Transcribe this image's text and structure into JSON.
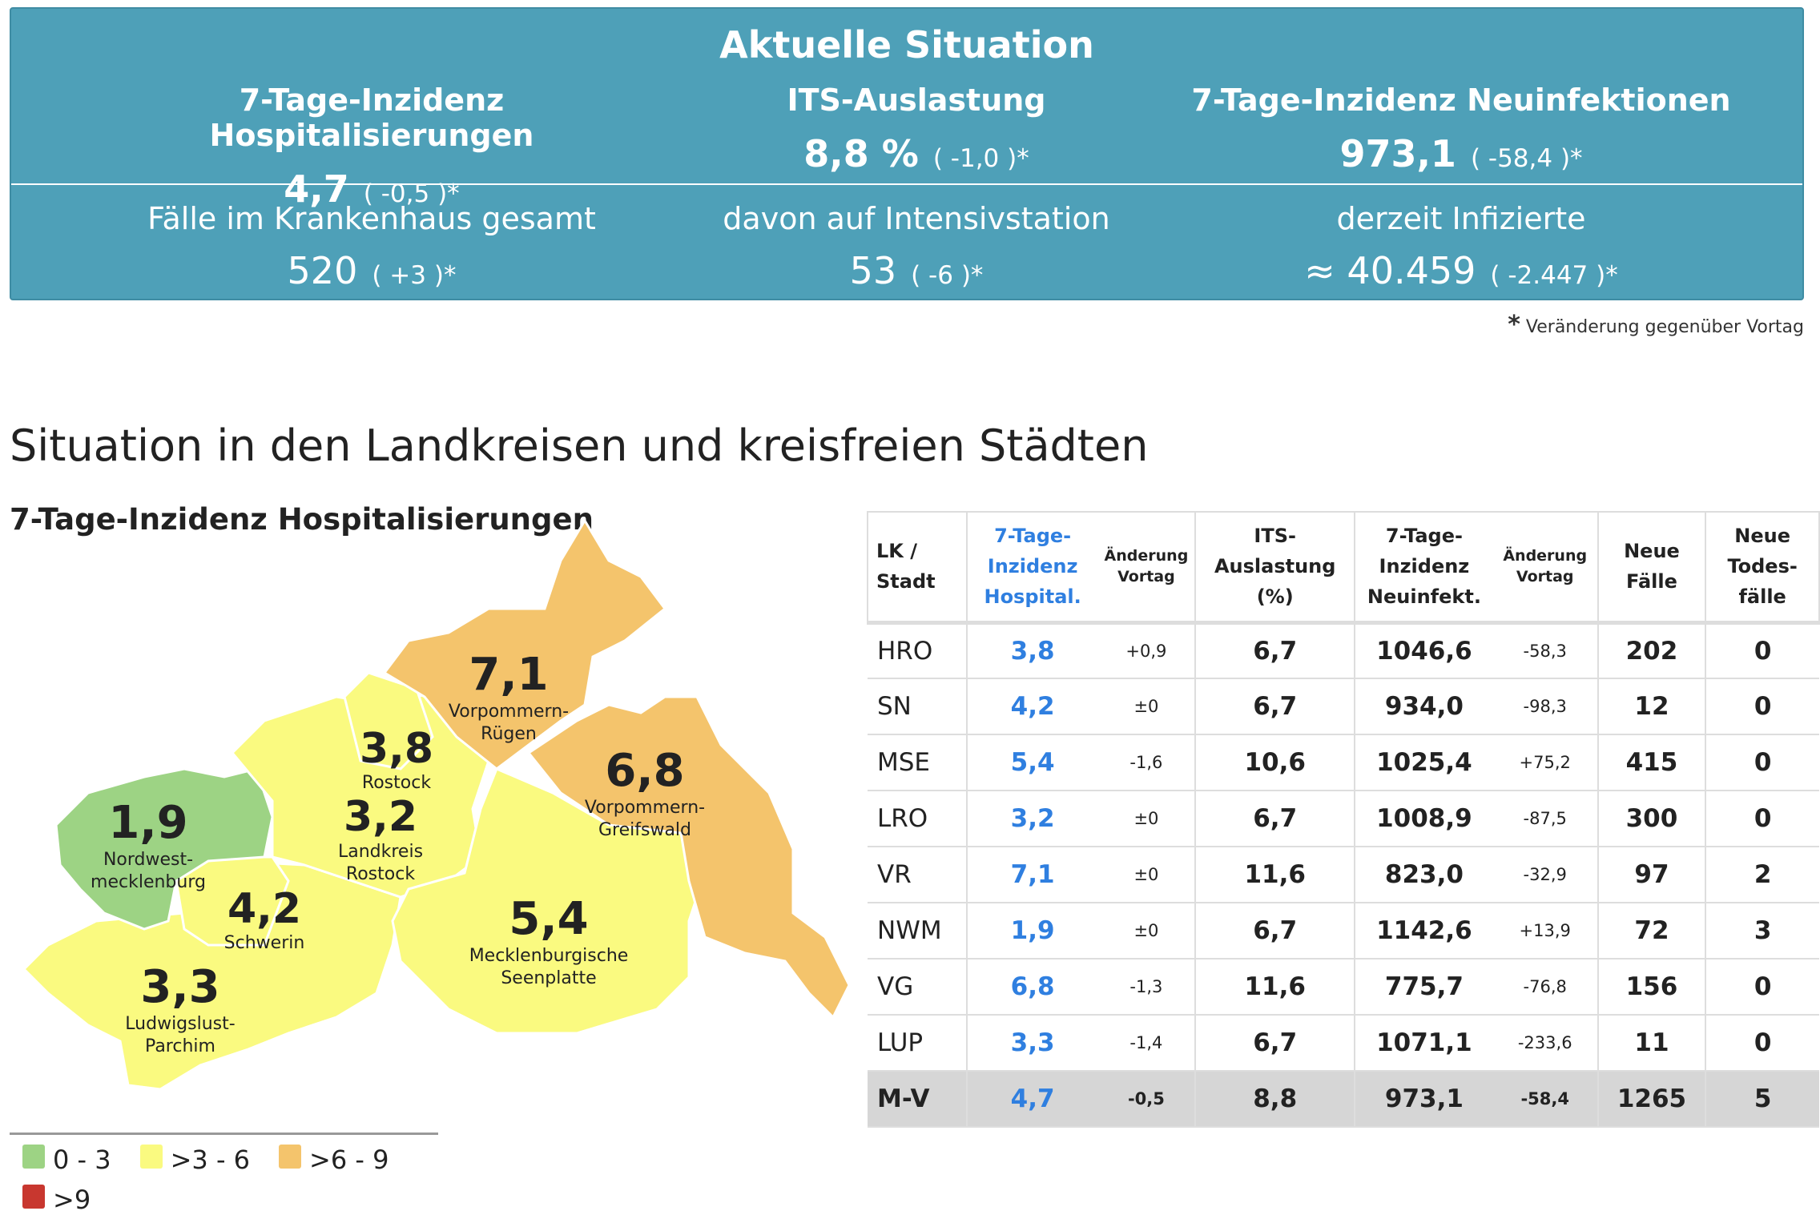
{
  "summary": {
    "title": "Aktuelle Situation",
    "items": [
      {
        "label": "7-Tage-Inzidenz Hospitalisierungen",
        "value": "4,7",
        "change": "( -0,5 )*"
      },
      {
        "label": "ITS-Auslastung",
        "value": "8,8 %",
        "change": "( -1,0 )*"
      },
      {
        "label": "7-Tage-Inzidenz Neuinfektionen",
        "value": "973,1",
        "change": "( -58,4 )*"
      },
      {
        "label": "Fälle im Krankenhaus gesamt",
        "value": "520",
        "change": "( +3 )*"
      },
      {
        "label": "davon auf Intensivstation",
        "value": "53",
        "change": "( -6 )*"
      },
      {
        "label": "derzeit Infizierte",
        "value": "≈ 40.459",
        "change": "( -2.447 )*"
      }
    ],
    "note_star": "*",
    "note": "Veränderung gegenüber Vortag"
  },
  "section_title": "Situation in den Landkreisen und kreisfreien Städten",
  "map": {
    "title": "7-Tage-Inzidenz Hospitalisierungen",
    "regions": [
      {
        "name": "Vorpommern-Rügen",
        "value": "7,1",
        "l1": "Vorpommern-",
        "l2": "Rügen"
      },
      {
        "name": "Rostock",
        "value": "3,8",
        "l1": "Rostock",
        "l2": ""
      },
      {
        "name": "Vorpommern-Greifswald",
        "value": "6,8",
        "l1": "Vorpommern-",
        "l2": "Greifswald"
      },
      {
        "name": "Nordwestmecklenburg",
        "value": "1,9",
        "l1": "Nordwest-",
        "l2": "mecklenburg"
      },
      {
        "name": "Landkreis Rostock",
        "value": "3,2",
        "l1": "Landkreis",
        "l2": "Rostock"
      },
      {
        "name": "Schwerin",
        "value": "4,2",
        "l1": "Schwerin",
        "l2": ""
      },
      {
        "name": "Mecklenburgische Seenplatte",
        "value": "5,4",
        "l1": "Mecklenburgische",
        "l2": "Seenplatte"
      },
      {
        "name": "Ludwigslust-Parchim",
        "value": "3,3",
        "l1": "Ludwigslust-",
        "l2": "Parchim"
      }
    ],
    "legend": [
      {
        "label": "0 - 3",
        "color": "#9dd384"
      },
      {
        "label": ">3 - 6",
        "color": "#fafa80"
      },
      {
        "label": ">6 - 9",
        "color": "#f4c46c"
      },
      {
        "label": ">9",
        "color": "#c8372f"
      }
    ]
  },
  "table": {
    "headers": {
      "lk": "LK / Stadt",
      "hosp": "7-Tage- Inzidenz Hospital.",
      "chg": "Änderung Vortag",
      "its": "ITS- Auslastung (%)",
      "inf": "7-Tage- Inzidenz Neuinfekt.",
      "chg2": "Änderung Vortag",
      "neu": "Neue Fälle",
      "tod": "Neue Todes- fälle"
    },
    "rows": [
      [
        "HRO",
        "3,8",
        "+0,9",
        "6,7",
        "1046,6",
        "-58,3",
        "202",
        "0"
      ],
      [
        "SN",
        "4,2",
        "±0",
        "6,7",
        "934,0",
        "-98,3",
        "12",
        "0"
      ],
      [
        "MSE",
        "5,4",
        "-1,6",
        "10,6",
        "1025,4",
        "+75,2",
        "415",
        "0"
      ],
      [
        "LRO",
        "3,2",
        "±0",
        "6,7",
        "1008,9",
        "-87,5",
        "300",
        "0"
      ],
      [
        "VR",
        "7,1",
        "±0",
        "11,6",
        "823,0",
        "-32,9",
        "97",
        "2"
      ],
      [
        "NWM",
        "1,9",
        "±0",
        "6,7",
        "1142,6",
        "+13,9",
        "72",
        "3"
      ],
      [
        "VG",
        "6,8",
        "-1,3",
        "11,6",
        "775,7",
        "-76,8",
        "156",
        "0"
      ],
      [
        "LUP",
        "3,3",
        "-1,4",
        "6,7",
        "1071,1",
        "-233,6",
        "11",
        "0"
      ],
      [
        "M-V",
        "4,7",
        "-0,5",
        "8,8",
        "973,1",
        "-58,4",
        "1265",
        "5"
      ]
    ]
  }
}
